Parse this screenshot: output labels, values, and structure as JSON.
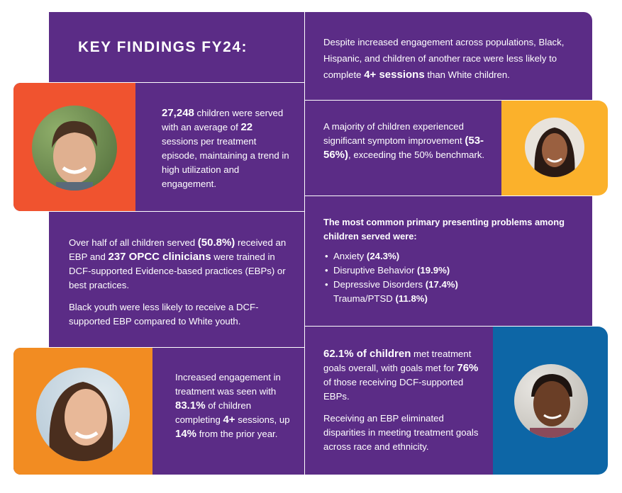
{
  "title": "KEY FINDINGS FY24:",
  "colors": {
    "purple": "#5b2c86",
    "red": "#f0532f",
    "yellow": "#fbb12b",
    "orange": "#f28c22",
    "blue": "#0d66a6"
  },
  "findings": {
    "disparity_sessions": [
      [
        {
          "t": "Despite increased engagement across populations, Black, Hispanic, and children of another race were less likely to complete "
        },
        {
          "t": "4+ sessions",
          "b": true
        },
        {
          "t": " than White children."
        }
      ]
    ],
    "children_served": [
      [
        {
          "t": "27,248",
          "b": true
        },
        {
          "t": " children were served with an average of "
        },
        {
          "t": "22",
          "b": true
        },
        {
          "t": " sessions per treatment episode, maintaining a trend in high utilization and engagement."
        }
      ]
    ],
    "symptom_improvement": [
      [
        {
          "t": "A majority of children experienced significant symptom improvement "
        },
        {
          "t": "(53-56%)",
          "b": true
        },
        {
          "t": ", exceeding the 50% benchmark."
        }
      ]
    ],
    "ebp": [
      [
        {
          "t": "Over half of all children served "
        },
        {
          "t": "(50.8%)",
          "b": true
        },
        {
          "t": " received an EBP and "
        },
        {
          "t": "237 OPCC clinicians",
          "b": true
        },
        {
          "t": " were trained in DCF-supported Evidence-based practices (EBPs) or best practices."
        }
      ],
      [
        {
          "t": "Black youth were less likely to receive a DCF-supported EBP compared to White youth."
        }
      ]
    ],
    "engagement": [
      [
        {
          "t": "Increased engagement in treatment was seen with "
        },
        {
          "t": "83.1%",
          "b": true
        },
        {
          "t": " of children completing "
        },
        {
          "t": "4+",
          "b": true
        },
        {
          "t": " sessions, up "
        },
        {
          "t": "14%",
          "b": true
        },
        {
          "t": " from the prior year."
        }
      ]
    ],
    "treatment_goals": [
      [
        {
          "t": "62.1% of children",
          "b": true
        },
        {
          "t": " met treatment goals overall, with goals met for "
        },
        {
          "t": "76%",
          "b": true
        },
        {
          "t": " of those receiving DCF-supported EBPs."
        }
      ],
      [
        {
          "t": "Receiving an EBP eliminated disparities in meeting treatment goals across race and ethnicity."
        }
      ]
    ]
  },
  "problems": {
    "heading": "The most common primary presenting problems among children served were:",
    "items": [
      {
        "label": "Anxiety",
        "value": "(24.3%)",
        "bullet": true
      },
      {
        "label": "Disruptive Behavior",
        "value": "(19.9%)",
        "bullet": true
      },
      {
        "label": "Depressive Disorders",
        "value": "(17.4%)",
        "bullet": true
      },
      {
        "label": "Trauma/PTSD",
        "value": "(11.8%)",
        "bullet": false
      }
    ]
  }
}
